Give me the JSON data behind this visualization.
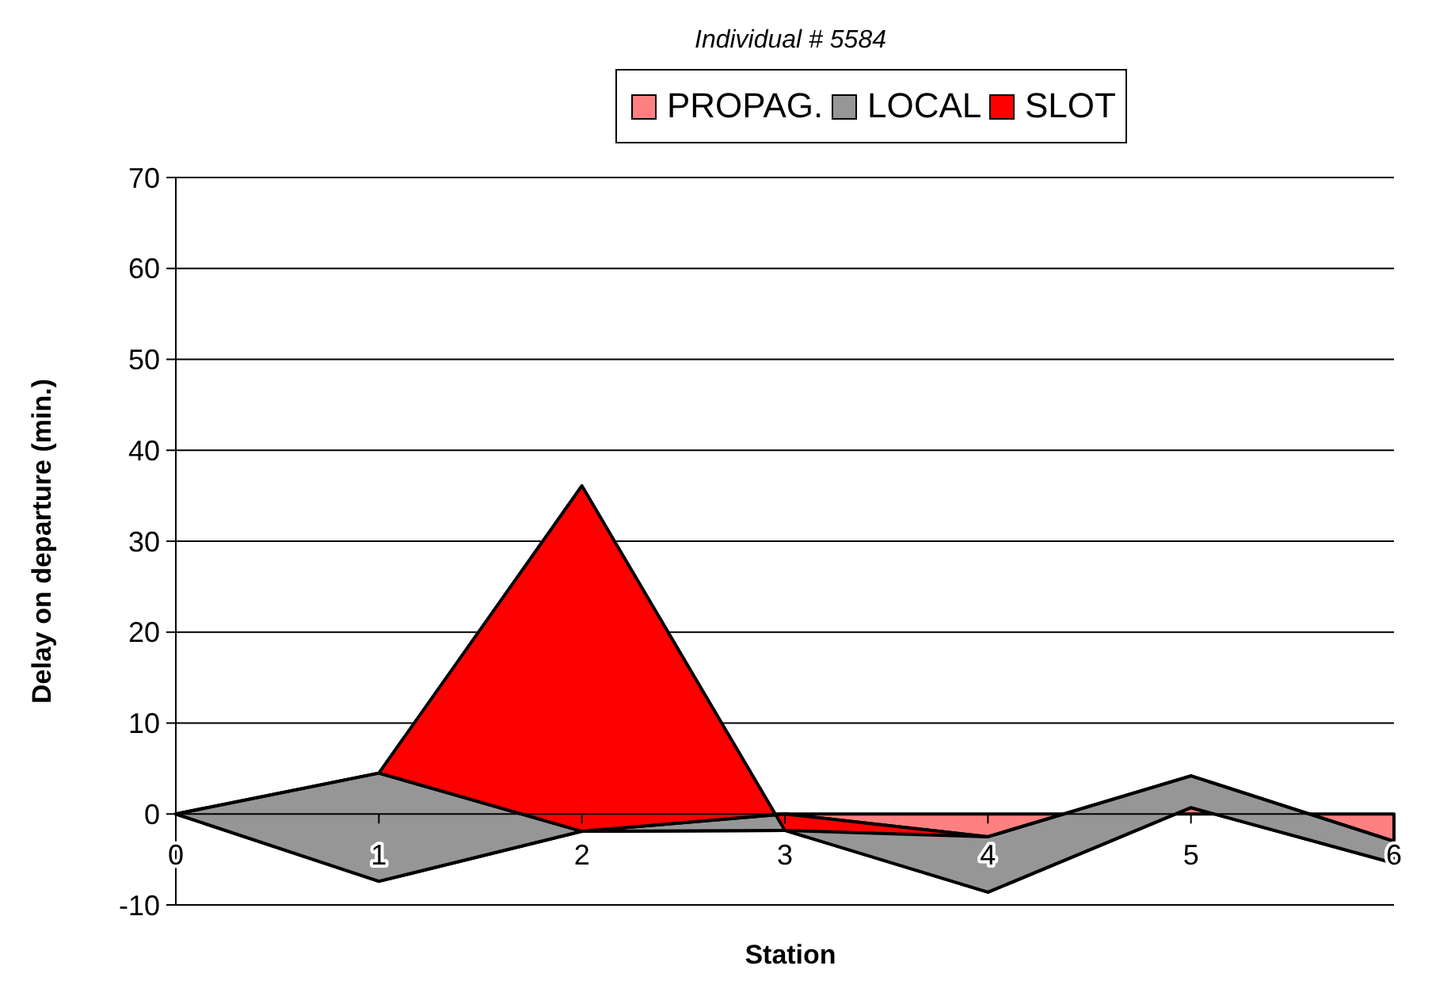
{
  "chart_data": {
    "type": "area",
    "stacked": true,
    "title": "Individual # 5584",
    "xlabel": "Station",
    "ylabel": "Delay on departure (min.)",
    "x": [
      0,
      1,
      2,
      3,
      4,
      5,
      6
    ],
    "xlim": [
      0,
      6
    ],
    "xticks": [
      0,
      1,
      2,
      3,
      4,
      5,
      6
    ],
    "ylim": [
      -10,
      70
    ],
    "yticks": [
      -10,
      0,
      10,
      20,
      30,
      40,
      50,
      60,
      70
    ],
    "grid": "y",
    "legend": "top",
    "series": [
      {
        "name": "PROPAG.",
        "color": "#ff8080",
        "values": [
          0,
          -7.4,
          -1.9,
          -1.8,
          -8.6,
          0.7,
          -5.4
        ]
      },
      {
        "name": "LOCAL",
        "color": "#969696",
        "values": [
          0,
          11.9,
          0,
          1.8,
          6.1,
          3.5,
          2.4
        ]
      },
      {
        "name": "SLOT",
        "color": "#ff0000",
        "values": [
          0,
          0,
          38,
          -1.8,
          0,
          0,
          0
        ]
      }
    ]
  }
}
